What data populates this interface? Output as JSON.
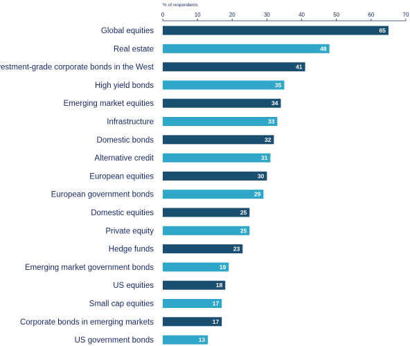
{
  "chart_data": {
    "type": "bar",
    "orientation": "horizontal",
    "title": "",
    "xlabel": "% of respondents",
    "ylabel": "",
    "xlim": [
      0,
      70
    ],
    "xticks": [
      0,
      10,
      20,
      30,
      40,
      50,
      60,
      70
    ],
    "grid": false,
    "legend": "none",
    "colors": {
      "dark": "#1b4f72",
      "light": "#2ea7c9",
      "label_text": "#1a2a6c"
    },
    "categories": [
      "Global equities",
      "Real estate",
      "Investment-grade corporate bonds in the West",
      "High yield bonds",
      "Emerging market equities",
      "Infrastructure",
      "Domestic bonds",
      "Alternative credit",
      "European equities",
      "European government bonds",
      "Domestic equities",
      "Private equity",
      "Hedge funds",
      "Emerging market government bonds",
      "US equities",
      "Small cap equities",
      "Corporate bonds in emerging markets",
      "US government bonds"
    ],
    "values": [
      65,
      48,
      41,
      35,
      34,
      33,
      32,
      31,
      30,
      29,
      25,
      25,
      23,
      19,
      18,
      17,
      17,
      13
    ]
  }
}
